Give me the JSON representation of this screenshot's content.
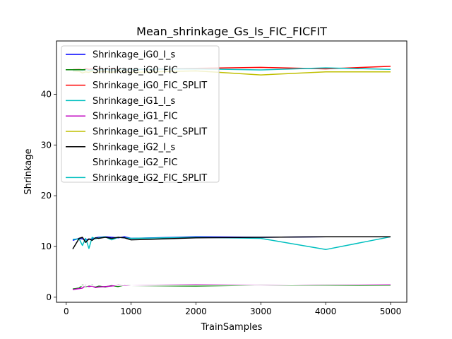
{
  "chart_data": {
    "type": "line",
    "title": "Mean_shrinkage_Gs_Is_FIC_FICFIT",
    "xlabel": "TrainSamples",
    "ylabel": "Shrinkage",
    "xlim": [
      -150,
      5250
    ],
    "ylim": [
      -1,
      50.5
    ],
    "xticks": [
      0,
      1000,
      2000,
      3000,
      4000,
      5000
    ],
    "yticks": [
      0,
      10,
      20,
      30,
      40
    ],
    "grid": false,
    "legend_position": "top-left",
    "series": [
      {
        "name": "Shrinkage_iG0_I_s",
        "color": "#0000ff",
        "x": [
          100,
          200,
          250,
          300,
          350,
          400,
          450,
          500,
          600,
          700,
          800,
          900,
          1000,
          2000,
          3000,
          4000,
          5000
        ],
        "y": [
          11.2,
          11.6,
          11.5,
          11.3,
          11.4,
          11.5,
          11.7,
          11.8,
          11.9,
          11.8,
          11.7,
          11.9,
          11.6,
          11.9,
          11.8,
          11.9,
          11.9
        ]
      },
      {
        "name": "Shrinkage_iG0_FIC",
        "color": "#008000",
        "x": [
          100,
          200,
          250,
          300,
          350,
          400,
          450,
          500,
          600,
          700,
          800,
          900,
          1000,
          2000,
          3000,
          4000,
          5000
        ],
        "y": [
          1.6,
          1.8,
          2.4,
          2.1,
          2.2,
          2.4,
          2.0,
          2.2,
          2.0,
          2.3,
          2.1,
          2.4,
          2.3,
          2.2,
          2.4,
          2.4,
          2.3
        ]
      },
      {
        "name": "Shrinkage_iG0_FIC_SPLIT",
        "color": "#ff0000",
        "x": [
          100,
          200,
          250,
          300,
          350,
          400,
          450,
          500,
          600,
          700,
          800,
          900,
          1000,
          2000,
          3000,
          4000,
          5000
        ],
        "y": [
          44.9,
          45.0,
          44.8,
          45.1,
          44.9,
          45.0,
          44.8,
          45.1,
          44.9,
          45.0,
          45.0,
          45.1,
          44.9,
          45.1,
          45.3,
          45.0,
          45.5
        ]
      },
      {
        "name": "Shrinkage_iG1_I_s",
        "color": "#00bfbf",
        "x": [
          100,
          200,
          250,
          300,
          350,
          400,
          450,
          500,
          600,
          700,
          800,
          900,
          1000,
          2000,
          3000,
          4000,
          5000
        ],
        "y": [
          11.4,
          11.5,
          10.2,
          11.6,
          9.6,
          11.8,
          11.5,
          11.7,
          11.9,
          11.3,
          11.8,
          11.7,
          11.6,
          11.8,
          11.6,
          9.4,
          11.9
        ]
      },
      {
        "name": "Shrinkage_iG1_FIC",
        "color": "#bf00bf",
        "x": [
          100,
          200,
          250,
          300,
          350,
          400,
          450,
          500,
          600,
          700,
          800,
          900,
          1000,
          2000,
          3000,
          4000,
          5000
        ],
        "y": [
          1.5,
          1.7,
          1.8,
          2.3,
          2.1,
          2.2,
          1.9,
          2.0,
          2.1,
          2.2,
          2.4,
          2.3,
          2.3,
          2.5,
          2.4,
          2.5,
          2.5
        ]
      },
      {
        "name": "Shrinkage_iG1_FIC_SPLIT",
        "color": "#bfbf00",
        "x": [
          100,
          200,
          250,
          300,
          350,
          400,
          450,
          500,
          600,
          700,
          800,
          900,
          1000,
          2000,
          3000,
          4000,
          5000
        ],
        "y": [
          44.6,
          44.5,
          44.2,
          44.4,
          44.3,
          44.6,
          44.2,
          44.4,
          44.5,
          44.3,
          44.6,
          44.4,
          44.3,
          44.6,
          43.8,
          44.4,
          44.4
        ]
      },
      {
        "name": "Shrinkage_iG2_I_s",
        "color": "#000000",
        "x": [
          100,
          200,
          250,
          300,
          350,
          400,
          450,
          500,
          600,
          700,
          800,
          900,
          1000,
          2000,
          3000,
          4000,
          5000
        ],
        "y": [
          9.5,
          11.6,
          11.8,
          10.8,
          11.5,
          11.2,
          11.7,
          11.6,
          11.8,
          11.6,
          11.8,
          11.7,
          11.3,
          11.7,
          11.8,
          11.9,
          11.9
        ]
      },
      {
        "name": "Shrinkage_iG2_FIC",
        "color": "#ffffff",
        "x": [
          100,
          200,
          250,
          300,
          350,
          400,
          450,
          500,
          600,
          700,
          800,
          900,
          1000,
          2000,
          3000,
          4000,
          5000
        ],
        "y": [
          2.1,
          2.2,
          2.3,
          2.2,
          2.4,
          2.3,
          2.2,
          2.4,
          2.3,
          2.5,
          2.3,
          2.4,
          2.3,
          2.4,
          2.4,
          2.5,
          2.4
        ]
      },
      {
        "name": "Shrinkage_iG2_FIC_SPLIT",
        "color": "#00bfbf",
        "x": [
          100,
          200,
          250,
          300,
          350,
          400,
          450,
          500,
          600,
          700,
          800,
          900,
          1000,
          2000,
          3000,
          4000,
          5000
        ],
        "y": [
          44.7,
          44.8,
          44.6,
          44.9,
          44.7,
          44.8,
          44.9,
          44.8,
          44.9,
          44.8,
          44.9,
          45.0,
          44.9,
          45.0,
          44.8,
          45.2,
          44.9
        ]
      }
    ]
  }
}
